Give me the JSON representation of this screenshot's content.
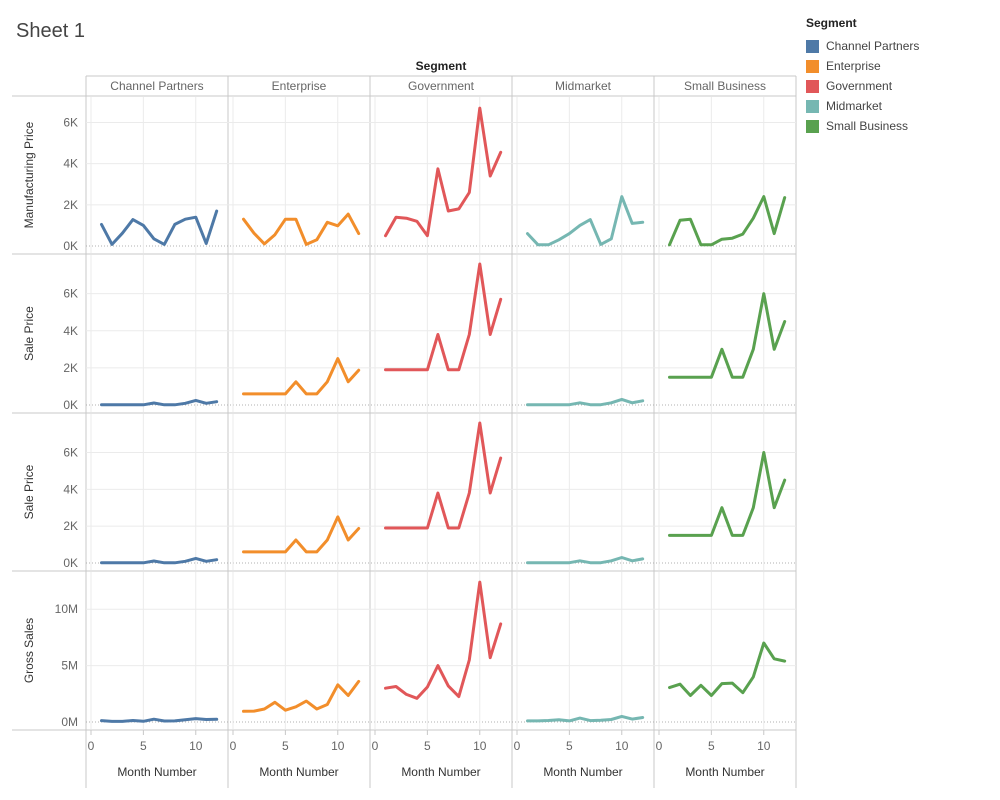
{
  "sheet_title": "Sheet 1",
  "legend": {
    "title": "Segment",
    "items": [
      {
        "label": "Channel Partners",
        "color": "#4e79a7"
      },
      {
        "label": "Enterprise",
        "color": "#f28e2b"
      },
      {
        "label": "Government",
        "color": "#e15759"
      },
      {
        "label": "Midmarket",
        "color": "#76b7b2"
      },
      {
        "label": "Small Business",
        "color": "#59a14f"
      }
    ]
  },
  "chart_data": {
    "type": "line",
    "title": "Sheet 1",
    "column_header": "Segment",
    "columns": [
      "Channel Partners",
      "Enterprise",
      "Government",
      "Midmarket",
      "Small Business"
    ],
    "colors": [
      "#4e79a7",
      "#f28e2b",
      "#e15759",
      "#76b7b2",
      "#59a14f"
    ],
    "x": [
      1,
      2,
      3,
      4,
      5,
      6,
      7,
      8,
      9,
      10,
      11,
      12
    ],
    "xlabel": "Month Number",
    "xlim": [
      0,
      12.6
    ],
    "xticks": [
      0,
      5,
      10
    ],
    "grid": true,
    "rows": [
      {
        "ylabel": "Manufacturing Price",
        "ylim": [
          0,
          6800
        ],
        "yticks": [
          {
            "v": 0,
            "label": "0K"
          },
          {
            "v": 2000,
            "label": "2K"
          },
          {
            "v": 4000,
            "label": "4K"
          },
          {
            "v": 6000,
            "label": "6K"
          }
        ],
        "series": [
          [
            1050,
            80,
            620,
            1280,
            1000,
            350,
            80,
            1050,
            1300,
            1400,
            120,
            1700
          ],
          [
            1300,
            620,
            100,
            550,
            1300,
            1300,
            80,
            300,
            1150,
            980,
            1550,
            600
          ],
          [
            500,
            1400,
            1350,
            1200,
            500,
            3750,
            1700,
            1800,
            2600,
            6700,
            3400,
            4550
          ],
          [
            600,
            60,
            60,
            300,
            600,
            1000,
            1280,
            80,
            350,
            2400,
            1100,
            1150
          ],
          [
            60,
            1250,
            1300,
            60,
            60,
            330,
            380,
            580,
            1350,
            2400,
            600,
            2350
          ]
        ]
      },
      {
        "ylabel": "Sale Price",
        "ylim": [
          0,
          7600
        ],
        "yticks": [
          {
            "v": 0,
            "label": "0K"
          },
          {
            "v": 2000,
            "label": "2K"
          },
          {
            "v": 4000,
            "label": "4K"
          },
          {
            "v": 6000,
            "label": "6K"
          }
        ],
        "series": [
          [
            12,
            12,
            12,
            12,
            12,
            110,
            12,
            12,
            90,
            250,
            90,
            180
          ],
          [
            600,
            600,
            600,
            600,
            600,
            1250,
            600,
            600,
            1250,
            2500,
            1250,
            1875
          ],
          [
            1900,
            1900,
            1900,
            1900,
            1900,
            3800,
            1900,
            1900,
            3800,
            7600,
            3800,
            5700
          ],
          [
            15,
            15,
            15,
            15,
            15,
            120,
            15,
            15,
            120,
            300,
            120,
            225
          ],
          [
            1500,
            1500,
            1500,
            1500,
            1500,
            3000,
            1500,
            1500,
            3000,
            6000,
            3000,
            4500
          ]
        ]
      },
      {
        "ylabel": "Sale Price",
        "ylim": [
          0,
          7600
        ],
        "yticks": [
          {
            "v": 0,
            "label": "0K"
          },
          {
            "v": 2000,
            "label": "2K"
          },
          {
            "v": 4000,
            "label": "4K"
          },
          {
            "v": 6000,
            "label": "6K"
          }
        ],
        "series": [
          [
            12,
            12,
            12,
            12,
            12,
            110,
            12,
            12,
            90,
            250,
            90,
            180
          ],
          [
            600,
            600,
            600,
            600,
            600,
            1250,
            600,
            600,
            1250,
            2500,
            1250,
            1875
          ],
          [
            1900,
            1900,
            1900,
            1900,
            1900,
            3800,
            1900,
            1900,
            3800,
            7600,
            3800,
            5700
          ],
          [
            15,
            15,
            15,
            15,
            15,
            120,
            15,
            15,
            120,
            300,
            120,
            225
          ],
          [
            1500,
            1500,
            1500,
            1500,
            1500,
            3000,
            1500,
            1500,
            3000,
            6000,
            3000,
            4500
          ]
        ]
      },
      {
        "ylabel": "Gross Sales",
        "ylim": [
          0,
          12500000
        ],
        "yticks": [
          {
            "v": 0,
            "label": "0M"
          },
          {
            "v": 5000000,
            "label": "5M"
          },
          {
            "v": 10000000,
            "label": "10M"
          }
        ],
        "series": [
          [
            120000,
            50000,
            50000,
            130000,
            60000,
            250000,
            90000,
            100000,
            200000,
            300000,
            220000,
            240000
          ],
          [
            950000,
            970000,
            1150000,
            1750000,
            1050000,
            1350000,
            1850000,
            1150000,
            1550000,
            3300000,
            2350000,
            3600000
          ],
          [
            3000000,
            3150000,
            2450000,
            2100000,
            3100000,
            5000000,
            3200000,
            2250000,
            5500000,
            12400000,
            5700000,
            8700000
          ],
          [
            100000,
            100000,
            130000,
            200000,
            100000,
            350000,
            120000,
            150000,
            220000,
            500000,
            260000,
            400000
          ],
          [
            3050000,
            3350000,
            2350000,
            3250000,
            2350000,
            3400000,
            3450000,
            2600000,
            4000000,
            7000000,
            5600000,
            5400000
          ]
        ]
      }
    ]
  }
}
